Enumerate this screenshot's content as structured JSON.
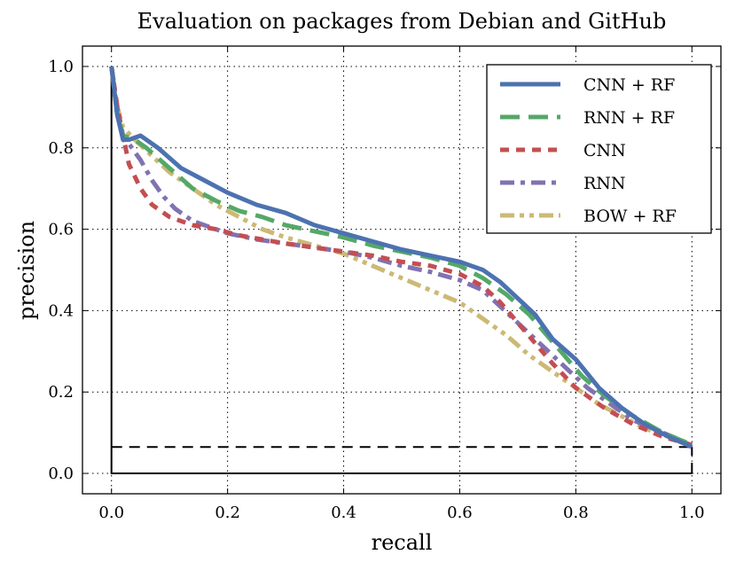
{
  "chart_data": {
    "type": "line",
    "title": "Evaluation on packages from Debian and GitHub",
    "xlabel": "recall",
    "ylabel": "precision",
    "xlim": [
      -0.05,
      1.05
    ],
    "ylim": [
      -0.05,
      1.05
    ],
    "xticks": [
      0.0,
      0.2,
      0.4,
      0.6,
      0.8,
      1.0
    ],
    "xtick_labels": [
      "0.0",
      "0.2",
      "0.4",
      "0.6",
      "0.8",
      "1.0"
    ],
    "yticks": [
      0.0,
      0.2,
      0.4,
      0.6,
      0.8,
      1.0
    ],
    "ytick_labels": [
      "0.0",
      "0.2",
      "0.4",
      "0.6",
      "0.8",
      "1.0"
    ],
    "grid": true,
    "legend_position": "top-right",
    "series": [
      {
        "name": "CNN + RF",
        "color": "#4c72b0",
        "style": "solid",
        "x": [
          0.0,
          0.01,
          0.02,
          0.03,
          0.05,
          0.08,
          0.12,
          0.16,
          0.2,
          0.25,
          0.3,
          0.35,
          0.4,
          0.45,
          0.5,
          0.55,
          0.6,
          0.64,
          0.67,
          0.7,
          0.73,
          0.76,
          0.8,
          0.84,
          0.88,
          0.92,
          0.96,
          1.0
        ],
        "y": [
          1.0,
          0.88,
          0.82,
          0.82,
          0.83,
          0.8,
          0.75,
          0.72,
          0.69,
          0.66,
          0.64,
          0.61,
          0.59,
          0.57,
          0.55,
          0.535,
          0.52,
          0.5,
          0.47,
          0.43,
          0.39,
          0.33,
          0.28,
          0.21,
          0.16,
          0.12,
          0.09,
          0.065
        ]
      },
      {
        "name": "RNN + RF",
        "color": "#55a868",
        "style": "dashed",
        "x": [
          0.0,
          0.01,
          0.02,
          0.04,
          0.06,
          0.1,
          0.14,
          0.18,
          0.22,
          0.26,
          0.3,
          0.35,
          0.4,
          0.45,
          0.5,
          0.55,
          0.6,
          0.64,
          0.68,
          0.72,
          0.75,
          0.78,
          0.81,
          0.85,
          0.9,
          0.95,
          1.0
        ],
        "y": [
          1.0,
          0.88,
          0.83,
          0.82,
          0.8,
          0.75,
          0.7,
          0.67,
          0.645,
          0.63,
          0.61,
          0.595,
          0.58,
          0.56,
          0.545,
          0.53,
          0.51,
          0.48,
          0.44,
          0.39,
          0.34,
          0.29,
          0.24,
          0.19,
          0.14,
          0.1,
          0.07
        ]
      },
      {
        "name": "CNN",
        "color": "#c44e52",
        "style": "dotted",
        "x": [
          0.0,
          0.01,
          0.02,
          0.03,
          0.05,
          0.07,
          0.1,
          0.14,
          0.18,
          0.22,
          0.26,
          0.3,
          0.35,
          0.4,
          0.45,
          0.5,
          0.55,
          0.6,
          0.64,
          0.67,
          0.7,
          0.73,
          0.76,
          0.8,
          0.85,
          0.9,
          0.95,
          1.0
        ],
        "y": [
          1.0,
          0.9,
          0.83,
          0.76,
          0.7,
          0.66,
          0.63,
          0.61,
          0.6,
          0.585,
          0.575,
          0.565,
          0.555,
          0.545,
          0.535,
          0.52,
          0.51,
          0.49,
          0.46,
          0.42,
          0.37,
          0.32,
          0.27,
          0.21,
          0.16,
          0.12,
          0.09,
          0.07
        ]
      },
      {
        "name": "RNN",
        "color": "#8172b2",
        "style": "dashdot",
        "x": [
          0.0,
          0.01,
          0.02,
          0.03,
          0.05,
          0.07,
          0.09,
          0.11,
          0.14,
          0.17,
          0.2,
          0.25,
          0.3,
          0.35,
          0.4,
          0.45,
          0.5,
          0.55,
          0.6,
          0.64,
          0.67,
          0.7,
          0.73,
          0.76,
          0.79,
          0.82,
          0.86,
          0.9,
          0.95,
          1.0
        ],
        "y": [
          1.0,
          0.9,
          0.82,
          0.81,
          0.77,
          0.72,
          0.68,
          0.65,
          0.62,
          0.605,
          0.59,
          0.575,
          0.565,
          0.555,
          0.545,
          0.53,
          0.51,
          0.495,
          0.475,
          0.45,
          0.41,
          0.37,
          0.33,
          0.29,
          0.25,
          0.21,
          0.17,
          0.13,
          0.1,
          0.07
        ]
      },
      {
        "name": "BOW + RF",
        "color": "#ccb974",
        "style": "dashdotdot",
        "x": [
          0.0,
          0.01,
          0.02,
          0.04,
          0.07,
          0.1,
          0.14,
          0.18,
          0.22,
          0.26,
          0.3,
          0.35,
          0.4,
          0.45,
          0.5,
          0.55,
          0.6,
          0.64,
          0.68,
          0.72,
          0.76,
          0.8,
          0.84,
          0.88,
          0.92,
          0.96,
          1.0
        ],
        "y": [
          1.0,
          0.9,
          0.85,
          0.82,
          0.78,
          0.74,
          0.7,
          0.66,
          0.63,
          0.6,
          0.58,
          0.56,
          0.54,
          0.51,
          0.48,
          0.45,
          0.42,
          0.38,
          0.34,
          0.29,
          0.25,
          0.21,
          0.17,
          0.14,
          0.11,
          0.09,
          0.065
        ]
      }
    ],
    "baseline": {
      "color": "#000000",
      "style": "dashed",
      "y": 0.065,
      "x_range": [
        0.0,
        1.0
      ]
    },
    "reference_lines": [
      {
        "x": [
          0.0,
          0.0,
          1.0
        ],
        "y": [
          1.0,
          0.0,
          0.0
        ],
        "color": "#000000",
        "style": "solid"
      },
      {
        "x": [
          1.0,
          1.0
        ],
        "y": [
          0.0,
          0.065
        ],
        "color": "#000000",
        "style": "dashed"
      }
    ]
  }
}
